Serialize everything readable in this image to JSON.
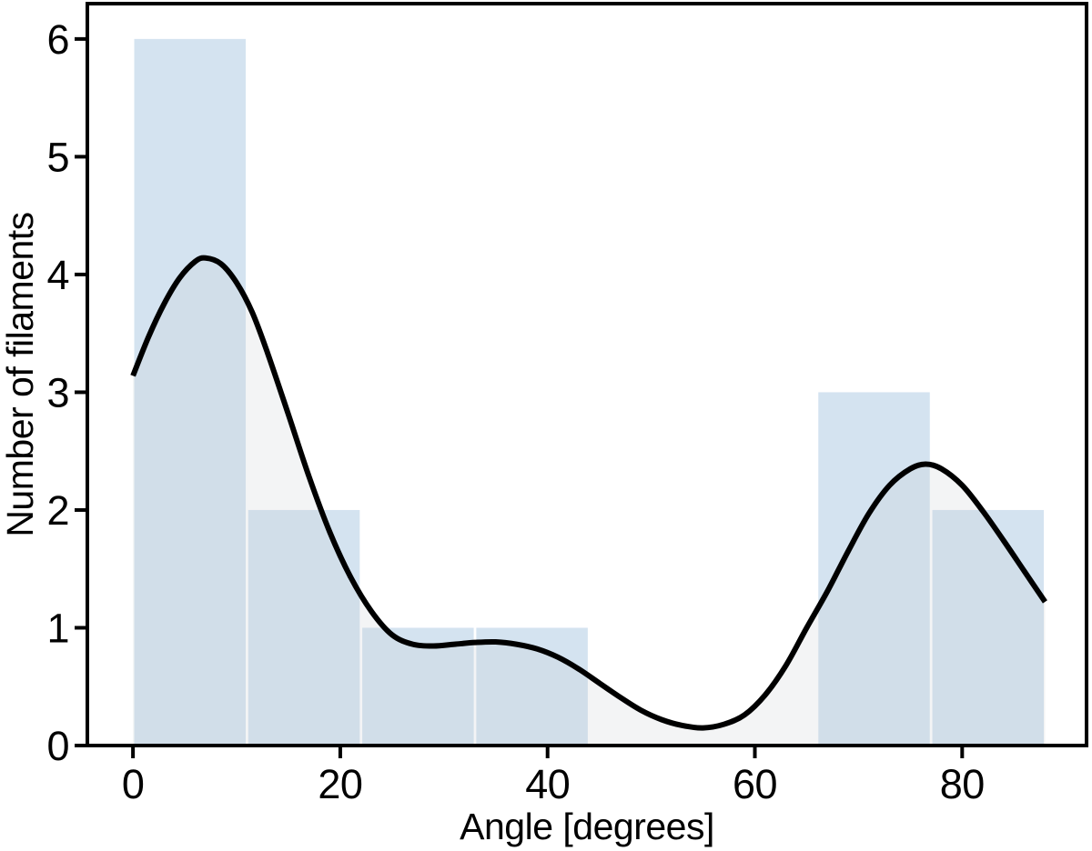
{
  "chart_data": {
    "type": "bar",
    "subtype": "histogram-with-kde",
    "title": "",
    "xlabel": "Angle [degrees]",
    "ylabel": "Number of filaments",
    "bin_edges": [
      0,
      11,
      22,
      33,
      44,
      55,
      66,
      77,
      88
    ],
    "counts": [
      6,
      2,
      1,
      1,
      0,
      0,
      3,
      2
    ],
    "x_ticks": [
      0,
      20,
      40,
      60,
      80
    ],
    "y_ticks": [
      0,
      1,
      2,
      3,
      4,
      5,
      6
    ],
    "xlim": [
      -4.4,
      92.0
    ],
    "ylim": [
      0,
      6.3
    ],
    "grid": false,
    "legend": false,
    "kde_curve": [
      [
        0,
        3.14
      ],
      [
        1.5,
        3.47
      ],
      [
        3,
        3.75
      ],
      [
        4.5,
        3.97
      ],
      [
        6,
        4.11
      ],
      [
        7,
        4.14
      ],
      [
        8.5,
        4.09
      ],
      [
        10,
        3.93
      ],
      [
        11.5,
        3.68
      ],
      [
        13,
        3.33
      ],
      [
        15,
        2.81
      ],
      [
        17,
        2.28
      ],
      [
        19,
        1.81
      ],
      [
        21,
        1.43
      ],
      [
        23,
        1.14
      ],
      [
        25,
        0.94
      ],
      [
        27,
        0.86
      ],
      [
        29,
        0.845
      ],
      [
        31,
        0.86
      ],
      [
        33,
        0.875
      ],
      [
        35,
        0.88
      ],
      [
        37,
        0.86
      ],
      [
        39,
        0.82
      ],
      [
        41,
        0.75
      ],
      [
        43,
        0.65
      ],
      [
        45,
        0.53
      ],
      [
        47,
        0.41
      ],
      [
        49,
        0.3
      ],
      [
        51,
        0.22
      ],
      [
        53,
        0.17
      ],
      [
        55,
        0.15
      ],
      [
        57,
        0.18
      ],
      [
        59,
        0.26
      ],
      [
        61,
        0.43
      ],
      [
        63,
        0.68
      ],
      [
        65,
        1.0
      ],
      [
        67,
        1.31
      ],
      [
        69,
        1.65
      ],
      [
        71,
        1.97
      ],
      [
        73,
        2.21
      ],
      [
        75,
        2.35
      ],
      [
        76.5,
        2.39
      ],
      [
        78,
        2.35
      ],
      [
        80,
        2.21
      ],
      [
        82,
        1.99
      ],
      [
        84,
        1.74
      ],
      [
        86,
        1.48
      ],
      [
        88,
        1.22
      ]
    ],
    "colors": {
      "bar_fill": "#d4e3f0",
      "bar_gap": "#ffffff",
      "kde_fill": "rgba(200,205,210,0.22)",
      "kde_line": "#000000",
      "axis": "#000000",
      "background": "#ffffff"
    }
  }
}
